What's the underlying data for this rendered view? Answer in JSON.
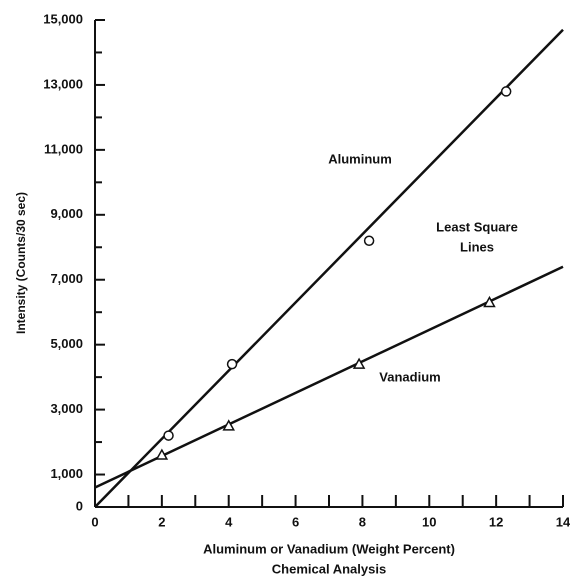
{
  "chart_data": {
    "type": "scatter",
    "x_label": "Aluminum or Vanadium (Weight Percent)",
    "x_label2": "Chemical Analysis",
    "y_label": "Intensity (Counts/30 sec)",
    "xlim": [
      0,
      14
    ],
    "ylim": [
      0,
      15000
    ],
    "xticks": [
      0,
      2,
      4,
      6,
      8,
      10,
      12,
      14
    ],
    "xminor_ticks": [
      1,
      3,
      5,
      7,
      9,
      11,
      13
    ],
    "yticks": [
      0,
      {
        "value": 1000,
        "label": "1,000"
      },
      {
        "value": 3000,
        "label": "3,000"
      },
      {
        "value": 5000,
        "label": "5,000"
      },
      {
        "value": 7000,
        "label": "7,000"
      },
      {
        "value": 9000,
        "label": "9,000"
      },
      {
        "value": 11000,
        "label": "11,000"
      },
      {
        "value": 13000,
        "label": "13,000"
      },
      {
        "value": 15000,
        "label": "15,000"
      }
    ],
    "yminor_ticks": [
      2000,
      4000,
      6000,
      8000,
      10000,
      12000,
      14000
    ],
    "series": [
      {
        "name": "Aluminum",
        "marker": "circle",
        "color": "#111111",
        "x": [
          2.2,
          4.1,
          8.2,
          12.3
        ],
        "values": [
          2200,
          4400,
          8200,
          12800
        ],
        "fit_x": [
          0,
          14
        ],
        "fit_values": [
          0,
          14700
        ]
      },
      {
        "name": "Vanadium",
        "marker": "triangle",
        "color": "#111111",
        "x": [
          2,
          4,
          7.9,
          11.8
        ],
        "values": [
          1600,
          2500,
          4400,
          6300
        ],
        "fit_x": [
          0,
          14
        ],
        "fit_values": [
          600,
          7400
        ]
      }
    ],
    "annotations": [
      "Least Square",
      "Lines"
    ]
  }
}
